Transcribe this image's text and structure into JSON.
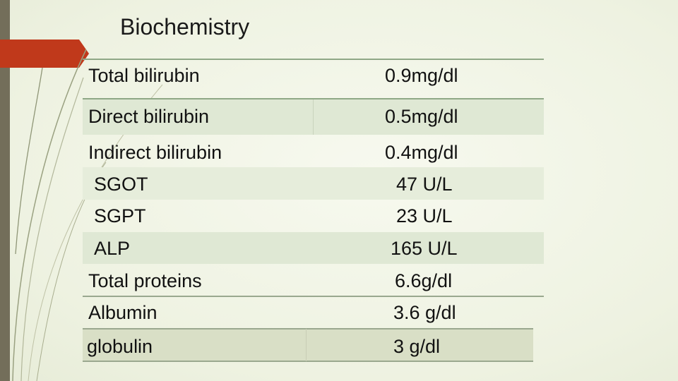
{
  "title": "Biochemistry",
  "rows": [
    {
      "label": "Total bilirubin",
      "value": "0.9mg/dl"
    },
    {
      "label": "Direct bilirubin",
      "value": "0.5mg/dl"
    },
    {
      "label": "Indirect bilirubin",
      "value": "0.4mg/dl"
    },
    {
      "label": "SGOT",
      "value": "47 U/L"
    },
    {
      "label": "SGPT",
      "value": "23 U/L"
    },
    {
      "label": "ALP",
      "value": "165 U/L"
    },
    {
      "label": "Total proteins",
      "value": "6.6g/dl"
    },
    {
      "label": "Albumin",
      "value": "3.6 g/dl"
    },
    {
      "label": "globulin",
      "value": "3 g/dl"
    }
  ],
  "colors": {
    "background": "#f1f5e6",
    "left_bar": "#736e5a",
    "accent_tab": "#c0391b",
    "table_line": "#8fa886",
    "band_shade": "#dfe8d4"
  }
}
